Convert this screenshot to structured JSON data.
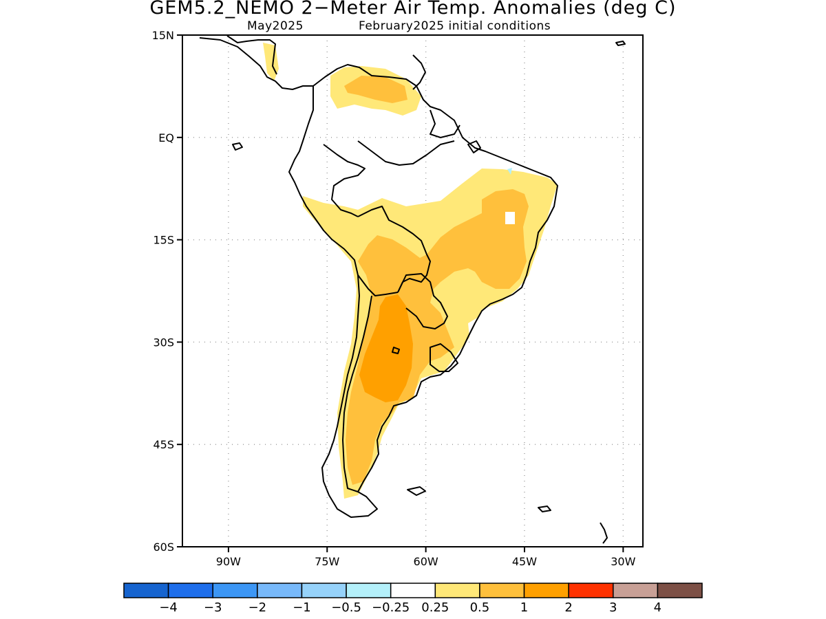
{
  "title": "GEM5.2_NEMO 2−Meter Air Temp. Anomalies (deg C)",
  "subtitle_left": "May2025",
  "subtitle_right": "February2025 initial conditions",
  "map": {
    "lon_range": [
      -97,
      -27
    ],
    "lat_range": [
      -60,
      15
    ],
    "x_ticks": [
      {
        "lon": -90,
        "label": "90W"
      },
      {
        "lon": -75,
        "label": "75W"
      },
      {
        "lon": -60,
        "label": "60W"
      },
      {
        "lon": -45,
        "label": "45W"
      },
      {
        "lon": -30,
        "label": "30W"
      }
    ],
    "y_ticks": [
      {
        "lat": 15,
        "label": "15N"
      },
      {
        "lat": 0,
        "label": "EQ"
      },
      {
        "lat": -15,
        "label": "15S"
      },
      {
        "lat": -30,
        "label": "30S"
      },
      {
        "lat": -45,
        "label": "45S"
      },
      {
        "lat": -60,
        "label": "60S"
      }
    ],
    "grid": "dotted"
  },
  "colorbar": {
    "colors": [
      "#1664cf",
      "#1e6eeb",
      "#3c96f5",
      "#78b9fa",
      "#96d2fa",
      "#b4f0fa",
      "#ffffff",
      "#ffe878",
      "#ffc03c",
      "#ffa000",
      "#ff3200",
      "#c8a096",
      "#7d5046"
    ],
    "labels": [
      "−4",
      "−3",
      "−2",
      "−1",
      "−0.5",
      "−0.25",
      "0.25",
      "0.5",
      "1",
      "2",
      "3",
      "4"
    ]
  }
}
